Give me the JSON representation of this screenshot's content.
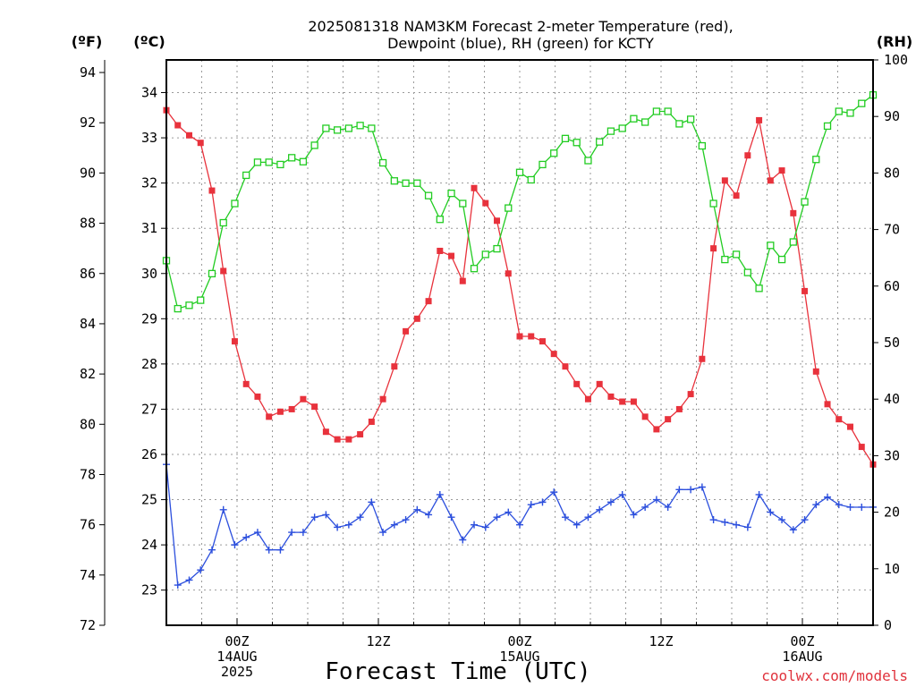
{
  "chart_data": {
    "type": "line",
    "title_line1": "2025081318 NAM3KM Forecast 2-meter Temperature (red),",
    "title_line2": "Dewpoint (blue), RH (green) for KCTY",
    "unit_f": "(ºF)",
    "unit_c": "(ºC)",
    "unit_rh": "(RH)",
    "xlabel": "Forecast Time (UTC)",
    "credit": "coolwx.com/models",
    "x_ticks": [
      {
        "hour": 6,
        "lines": [
          "00Z",
          "14AUG",
          "2025"
        ]
      },
      {
        "hour": 18,
        "lines": [
          "12Z"
        ]
      },
      {
        "hour": 30,
        "lines": [
          "00Z",
          "15AUG"
        ]
      },
      {
        "hour": 42,
        "lines": [
          "12Z"
        ]
      },
      {
        "hour": 54,
        "lines": [
          "00Z",
          "16AUG"
        ]
      }
    ],
    "x_range_hours": [
      0,
      60
    ],
    "f_axis": {
      "range": [
        72,
        94.5
      ],
      "ticks": [
        72,
        74,
        76,
        78,
        80,
        82,
        84,
        86,
        88,
        90,
        92,
        94
      ]
    },
    "c_axis": {
      "range": [
        22.2222,
        34.7222
      ],
      "ticks": [
        23,
        24,
        25,
        26,
        27,
        28,
        29,
        30,
        31,
        32,
        33,
        34
      ]
    },
    "rh_axis": {
      "range": [
        0,
        100
      ],
      "ticks": [
        0,
        10,
        20,
        30,
        40,
        50,
        60,
        70,
        80,
        90,
        100
      ]
    },
    "grid": true,
    "series": [
      {
        "name": "2-meter Temperature",
        "color": "#e8323c",
        "marker": "filled-square",
        "axis": "f",
        "values": [
          92.5,
          91.9,
          91.5,
          91.2,
          89.3,
          86.1,
          83.3,
          81.6,
          81.1,
          80.3,
          80.5,
          80.6,
          81.0,
          80.7,
          79.7,
          79.4,
          79.4,
          79.6,
          80.1,
          81.0,
          82.3,
          83.7,
          84.2,
          84.9,
          86.9,
          86.7,
          85.7,
          89.4,
          88.8,
          88.1,
          86.0,
          83.5,
          83.5,
          83.3,
          82.8,
          82.3,
          81.6,
          81.0,
          81.6,
          81.1,
          80.9,
          80.9,
          80.3,
          79.8,
          80.2,
          80.6,
          81.2,
          82.6,
          87.0,
          89.7,
          89.1,
          90.7,
          92.1,
          89.7,
          90.1,
          88.4,
          85.3,
          82.1,
          80.8,
          80.2,
          79.9,
          79.1,
          78.4
        ]
      },
      {
        "name": "Dewpoint",
        "color": "#2c4fdd",
        "marker": "plus",
        "axis": "f",
        "values": [
          78.4,
          73.6,
          73.8,
          74.2,
          75.0,
          76.6,
          75.2,
          75.5,
          75.7,
          75.0,
          75.0,
          75.7,
          75.7,
          76.3,
          76.4,
          75.9,
          76.0,
          76.3,
          76.9,
          75.7,
          76.0,
          76.2,
          76.6,
          76.4,
          77.2,
          76.3,
          75.4,
          76.0,
          75.9,
          76.3,
          76.5,
          76.0,
          76.8,
          76.9,
          77.3,
          76.3,
          76.0,
          76.3,
          76.6,
          76.9,
          77.2,
          76.4,
          76.7,
          77.0,
          76.7,
          77.4,
          77.4,
          77.5,
          76.2,
          76.1,
          76.0,
          75.9,
          77.2,
          76.5,
          76.2,
          75.8,
          76.2,
          76.8,
          77.1,
          76.8,
          76.7,
          76.7,
          76.7
        ]
      },
      {
        "name": "RH",
        "color": "#22cc22",
        "marker": "open-square",
        "axis": "rh",
        "values": [
          64.5,
          56.0,
          56.6,
          57.5,
          62.2,
          71.2,
          74.6,
          79.6,
          81.9,
          81.9,
          81.5,
          82.7,
          82.0,
          84.9,
          87.9,
          87.6,
          87.9,
          88.4,
          87.9,
          81.8,
          78.6,
          78.2,
          78.2,
          76.0,
          71.8,
          76.4,
          74.6,
          63.1,
          65.6,
          66.6,
          73.8,
          80.1,
          78.8,
          81.5,
          83.5,
          86.1,
          85.4,
          82.2,
          85.5,
          87.4,
          87.9,
          89.6,
          89.0,
          90.9,
          90.9,
          88.7,
          89.5,
          84.8,
          74.6,
          64.7,
          65.6,
          62.4,
          59.6,
          67.2,
          64.7,
          67.8,
          74.9,
          82.4,
          88.3,
          90.9,
          90.6,
          92.3,
          93.8
        ]
      }
    ]
  }
}
